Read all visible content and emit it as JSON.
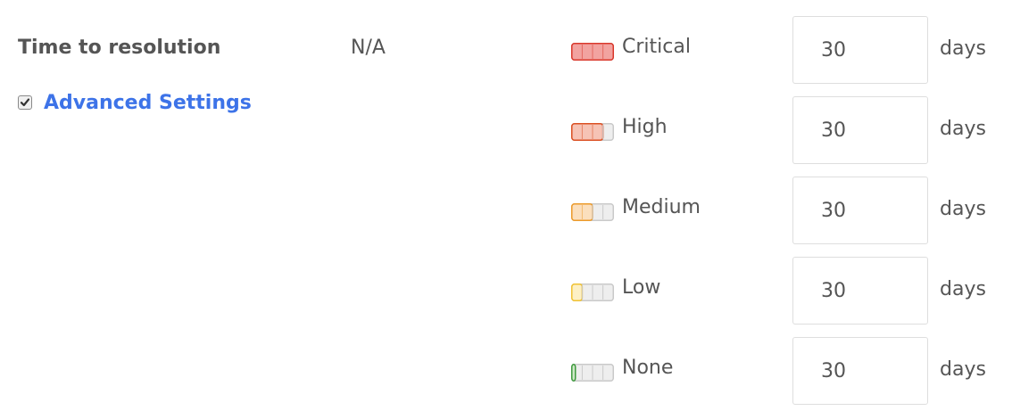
{
  "field": {
    "title": "Time to resolution",
    "value": "N/A"
  },
  "advanced_settings": {
    "label": "Advanced Settings",
    "checked": true
  },
  "severities": [
    {
      "label": "Critical",
      "days": "30",
      "unit": "days",
      "color": "#d9382c",
      "fill": "#f2a3a0",
      "level": 4,
      "icon": "severity-critical-icon"
    },
    {
      "label": "High",
      "days": "30",
      "unit": "days",
      "color": "#db4f22",
      "fill": "#f6c3b5",
      "level": 3,
      "icon": "severity-high-icon"
    },
    {
      "label": "Medium",
      "days": "30",
      "unit": "days",
      "color": "#ec9a2a",
      "fill": "#fbdfbd",
      "level": 2,
      "icon": "severity-medium-icon"
    },
    {
      "label": "Low",
      "days": "30",
      "unit": "days",
      "color": "#f1c232",
      "fill": "#fdf0c4",
      "level": 1,
      "icon": "severity-low-icon"
    },
    {
      "label": "None",
      "days": "30",
      "unit": "days",
      "color": "#3e9a3e",
      "fill": "#cfe9c8",
      "level": 0,
      "icon": "severity-none-icon"
    }
  ]
}
